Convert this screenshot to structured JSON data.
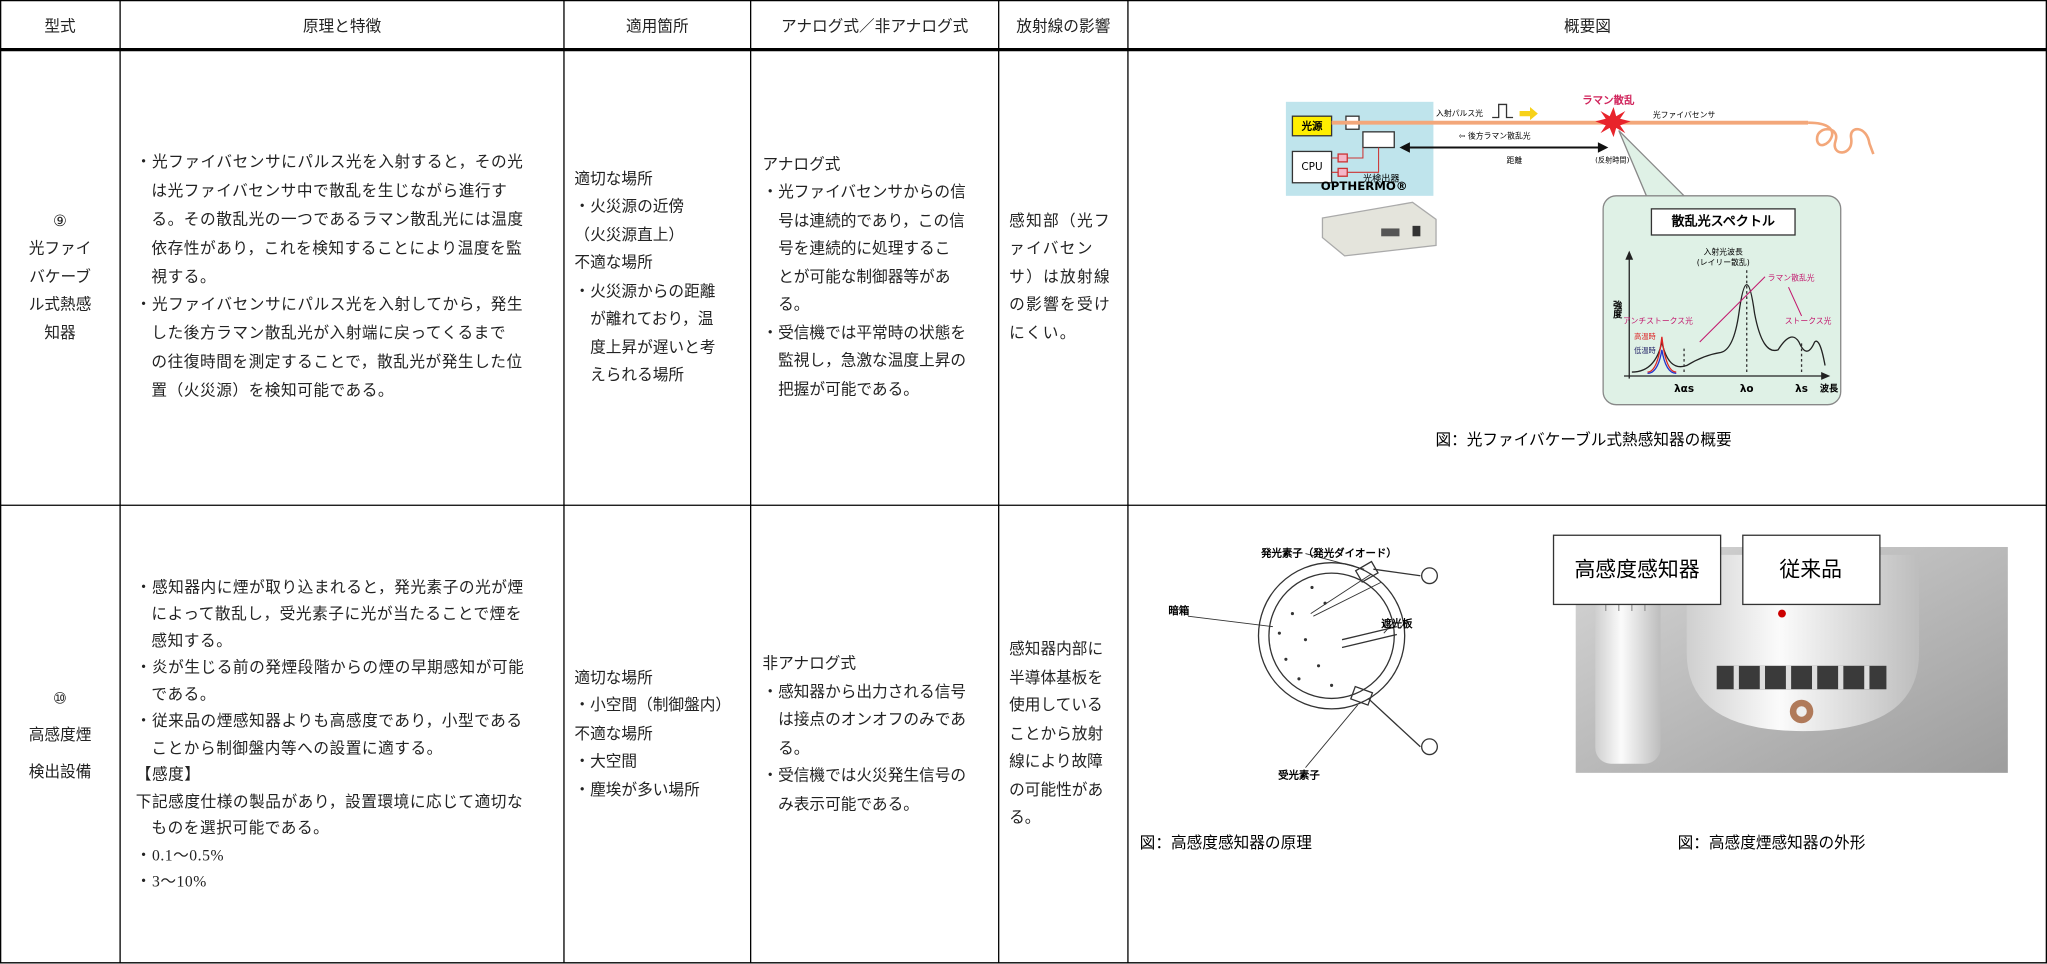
{
  "table": {
    "headers": [
      "型式",
      "原理と特徴",
      "適用箇所",
      "アナログ式／非アナログ式",
      "放射線の影響",
      "概要図"
    ],
    "rows": [
      {
        "type": [
          "⑨",
          "光ファイ",
          "バケーブ",
          "ル式熱感",
          "知器"
        ],
        "principle": [
          "・光ファイバセンサにパルス光を入射すると，その光",
          "は光ファイバセンサ中で散乱を生じながら進行す",
          "る。その散乱光の一つであるラマン散乱光には温度",
          "依存性があり，これを検知することにより温度を監",
          "視する。",
          "・光ファイバセンサにパルス光を入射してから，発生",
          "した後方ラマン散乱光が入射端に戻ってくるまで",
          "の往復時間を測定することで，散乱光が発生した位",
          "置（火災源）を検知可能である。"
        ],
        "location": [
          "適切な場所",
          "・火災源の近傍",
          "（火災源直上）",
          "不適な場所",
          "・火災源からの距離",
          "が離れており，温",
          "度上昇が遅いと考",
          "えられる場所"
        ],
        "analog": [
          "アナログ式",
          "・光ファイバセンサからの信",
          "号は連続的であり，この信",
          "号を連続的に処理するこ",
          "とが可能な制御器等があ",
          "る。",
          "・受信機では平常時の状態を",
          "監視し，急激な温度上昇の",
          "把握が可能である。"
        ],
        "radiation": [
          "感知部（光フ",
          "ァイバセン",
          "サ）は放射線",
          "の影響を受け",
          "にくい。"
        ],
        "figures": [
          {
            "caption": "図：光ファイバケーブル式熱感知器の概要",
            "labels": {
              "source": "光源",
              "cpu": "CPU",
              "pulse": "入射パルス光",
              "raman": "ラマン散乱",
              "fiber": "光ファイバセンサ",
              "back": "⇦ 後方ラマン散乱光",
              "distance": "距離",
              "detector": "光検出器",
              "time": "(反射時間)",
              "brand": "OPTHERMO®",
              "spectrum": "散乱光スペクトル",
              "incident": "入射光波長",
              "rayleigh": "(レイリー散乱)",
              "raman_light": "ラマン散乱光",
              "intensity": "強度",
              "anti_stokes": "アンチストークス光",
              "stokes": "ストークス光",
              "hot": "高温時",
              "cold": "低温時",
              "l_as": "λαs",
              "l_o": "λo",
              "l_s": "λs",
              "wavelength": "波長"
            }
          }
        ]
      },
      {
        "type": [
          "⑩",
          "高感度煙",
          "検出設備"
        ],
        "principle": [
          "・感知器内に煙が取り込まれると，発光素子の光が煙",
          "によって散乱し，受光素子に光が当たることで煙を",
          "感知する。",
          "・炎が生じる前の発煙段階からの煙の早期感知が可能",
          "である。",
          "・従来品の煙感知器よりも高感度であり，小型である",
          "ことから制御盤内等への設置に適する。",
          "【感度】",
          "下記感度仕様の製品があり，設置環境に応じて適切な",
          "ものを選択可能である。",
          "・0.1～0.5%",
          "・3～10%"
        ],
        "location": [
          "適切な場所",
          "・小空間（制御盤内）",
          "不適な場所",
          "・大空間",
          "・塵埃が多い場所"
        ],
        "analog": [
          "非アナログ式",
          "・感知器から出力される信号",
          "は接点のオンオフのみであ",
          "る。",
          "・受信機では火災発生信号の",
          "み表示可能である。"
        ],
        "radiation": [
          "感知器内部に",
          "半導体基板を",
          "使用している",
          "ことから放射",
          "線により故障",
          "の可能性があ",
          "る。"
        ],
        "figures": [
          {
            "caption": "図：高感度感知器の原理",
            "labels": {
              "emitter": "発光素子（発光ダイオード）",
              "darkbox": "暗箱",
              "shield": "遮光板",
              "receiver": "受光素子"
            }
          },
          {
            "caption": "図：高感度煙感知器の外形",
            "labels": {
              "new": "高感度感知器",
              "old": "従来品"
            }
          }
        ]
      }
    ]
  }
}
